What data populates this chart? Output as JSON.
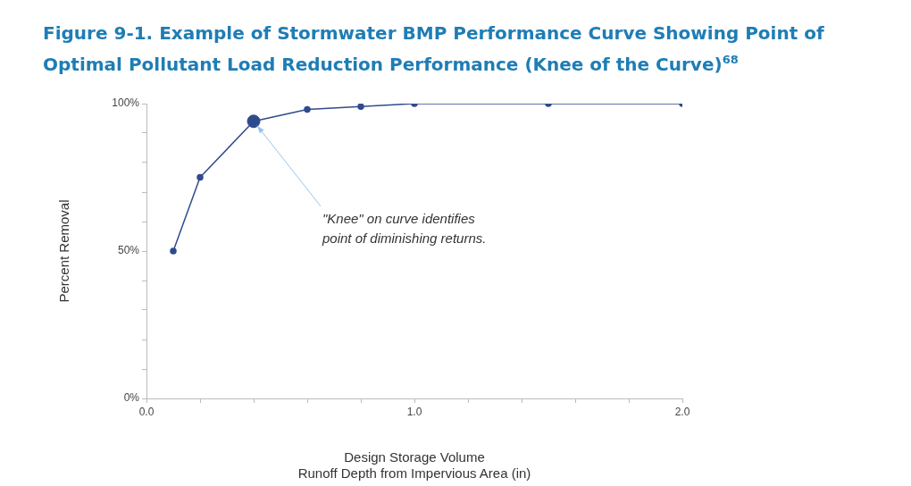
{
  "chart_data": {
    "type": "line",
    "title": "Figure 9-1. Example of Stormwater BMP Performance Curve Showing Point of Optimal Pollutant Load Reduction Performance (Knee of the Curve)$^{68}$",
    "xlabel": "Design Storage Volume\nRunoff Depth from Impervious Area (in)",
    "ylabel": "Percent Removal",
    "x": [
      0.1,
      0.2,
      0.4,
      0.6,
      0.8,
      1.0,
      1.5,
      2.0
    ],
    "series": [
      {
        "color": "#2f4b8c",
        "values": [
          50,
          75,
          94,
          98,
          99,
          100,
          100,
          100
        ]
      },
      {
        "type": "scatter",
        "x": [
          0.4
        ],
        "color": "#2f4b8c",
        "values": [
          94
        ]
      }
    ],
    "xlim": [
      0,
      2
    ],
    "xticks": [
      {
        "value": 0,
        "label": "0.0"
      },
      {
        "value": 0.2,
        "label": null
      },
      {
        "value": 0.4,
        "label": null
      },
      {
        "value": 0.6,
        "label": null
      },
      {
        "value": 0.8,
        "label": null
      },
      {
        "value": 1,
        "label": "1.0"
      },
      {
        "value": 1.2,
        "label": null
      },
      {
        "value": 1.4,
        "label": null
      },
      {
        "value": 1.6,
        "label": null
      },
      {
        "value": 1.8,
        "label": null
      },
      {
        "value": 2,
        "label": "2.0"
      }
    ],
    "ylim": [
      0,
      100
    ],
    "yticks": [
      {
        "value": 0,
        "label": "0%"
      },
      {
        "value": 10,
        "label": null
      },
      {
        "value": 20,
        "label": null
      },
      {
        "value": 30,
        "label": null
      },
      {
        "value": 40,
        "label": null
      },
      {
        "value": 50,
        "label": "50%"
      },
      {
        "value": 60,
        "label": null
      },
      {
        "value": 70,
        "label": null
      },
      {
        "value": 80,
        "label": null
      },
      {
        "value": 90,
        "label": null
      },
      {
        "value": 100,
        "label": "100%"
      }
    ],
    "marker": "circle",
    "legend": false,
    "annotations": [
      {
        "text": "\"Knee\" on curve identifies\npoint of diminishing returns.",
        "x": 0.4,
        "y": 94
      }
    ]
  }
}
